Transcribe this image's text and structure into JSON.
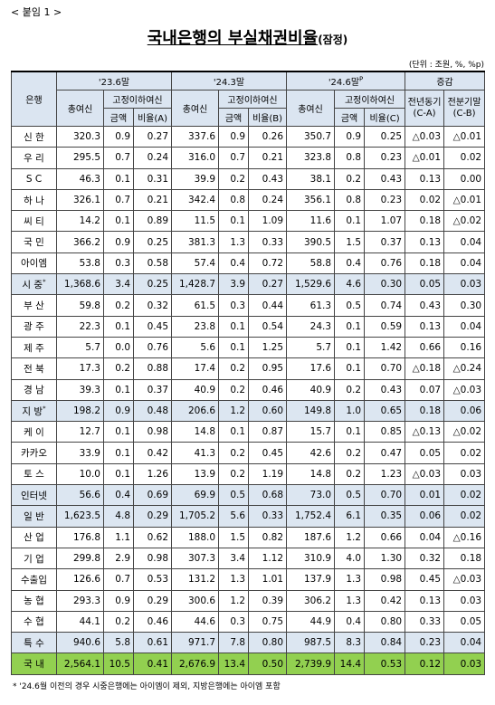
{
  "header": {
    "attachment": "< 붙임 1 >",
    "title": "국내은행의 부실채권비율",
    "title_note": "(잠정)",
    "unit": "(단위 : 조원, %, %p)"
  },
  "table": {
    "head": {
      "bank": "은행",
      "periods": [
        {
          "label": "'23.6말"
        },
        {
          "label": "'24.3말"
        },
        {
          "label": "'24.6말",
          "sup": "P"
        }
      ],
      "total_loans": "총여신",
      "npl": "고정이하여신",
      "amount": "금액",
      "ratios": [
        "비율(A)",
        "비율(B)",
        "비율(C)"
      ],
      "change": "증감",
      "diffs": [
        [
          "전년",
          "동기",
          "(C-A)"
        ],
        [
          "전분기말",
          "(C-B)"
        ]
      ]
    },
    "highlights": {
      "subtotal": "#dce6f1",
      "total": "#92d050"
    },
    "rows": [
      {
        "label": "신 한",
        "cells": [
          "320.3",
          "0.9",
          "0.27",
          "337.6",
          "0.9",
          "0.26",
          "350.7",
          "0.9",
          "0.25",
          "△0.03",
          "△0.01"
        ]
      },
      {
        "label": "우 리",
        "cells": [
          "295.5",
          "0.7",
          "0.24",
          "316.0",
          "0.7",
          "0.21",
          "323.8",
          "0.8",
          "0.23",
          "△0.01",
          "0.02"
        ]
      },
      {
        "label": "S C",
        "cells": [
          "46.3",
          "0.1",
          "0.31",
          "39.9",
          "0.2",
          "0.43",
          "38.1",
          "0.2",
          "0.43",
          "0.13",
          "0.00"
        ]
      },
      {
        "label": "하 나",
        "cells": [
          "326.1",
          "0.7",
          "0.21",
          "342.4",
          "0.8",
          "0.24",
          "356.1",
          "0.8",
          "0.23",
          "0.02",
          "△0.01"
        ]
      },
      {
        "label": "씨 티",
        "cells": [
          "14.2",
          "0.1",
          "0.89",
          "11.5",
          "0.1",
          "1.09",
          "11.6",
          "0.1",
          "1.07",
          "0.18",
          "△0.02"
        ]
      },
      {
        "label": "국 민",
        "cells": [
          "366.2",
          "0.9",
          "0.25",
          "381.3",
          "1.3",
          "0.33",
          "390.5",
          "1.5",
          "0.37",
          "0.13",
          "0.04"
        ]
      },
      {
        "label": "아이엠",
        "cells": [
          "53.8",
          "0.3",
          "0.58",
          "57.4",
          "0.4",
          "0.72",
          "58.8",
          "0.4",
          "0.76",
          "0.18",
          "0.04"
        ]
      },
      {
        "label": "시 중",
        "sup": "*",
        "kind": "subtotal",
        "cells": [
          "1,368.6",
          "3.4",
          "0.25",
          "1,428.7",
          "3.9",
          "0.27",
          "1,529.6",
          "4.6",
          "0.30",
          "0.05",
          "0.03"
        ]
      },
      {
        "label": "부 산",
        "cells": [
          "59.8",
          "0.2",
          "0.32",
          "61.5",
          "0.3",
          "0.44",
          "61.3",
          "0.5",
          "0.74",
          "0.43",
          "0.30"
        ]
      },
      {
        "label": "광 주",
        "cells": [
          "22.3",
          "0.1",
          "0.45",
          "23.8",
          "0.1",
          "0.54",
          "24.3",
          "0.1",
          "0.59",
          "0.13",
          "0.04"
        ]
      },
      {
        "label": "제 주",
        "cells": [
          "5.7",
          "0.0",
          "0.76",
          "5.6",
          "0.1",
          "1.25",
          "5.7",
          "0.1",
          "1.42",
          "0.66",
          "0.16"
        ]
      },
      {
        "label": "전 북",
        "cells": [
          "17.3",
          "0.2",
          "0.88",
          "17.4",
          "0.2",
          "0.95",
          "17.6",
          "0.1",
          "0.70",
          "△0.18",
          "△0.24"
        ]
      },
      {
        "label": "경 남",
        "cells": [
          "39.3",
          "0.1",
          "0.37",
          "40.9",
          "0.2",
          "0.46",
          "40.9",
          "0.2",
          "0.43",
          "0.07",
          "△0.03"
        ]
      },
      {
        "label": "지 방",
        "sup": "*",
        "kind": "subtotal",
        "cells": [
          "198.2",
          "0.9",
          "0.48",
          "206.6",
          "1.2",
          "0.60",
          "149.8",
          "1.0",
          "0.65",
          "0.18",
          "0.06"
        ]
      },
      {
        "label": "케 이",
        "cells": [
          "12.7",
          "0.1",
          "0.98",
          "14.8",
          "0.1",
          "0.87",
          "15.7",
          "0.1",
          "0.85",
          "△0.13",
          "△0.02"
        ]
      },
      {
        "label": "카카오",
        "cells": [
          "33.9",
          "0.1",
          "0.42",
          "41.3",
          "0.2",
          "0.45",
          "42.6",
          "0.2",
          "0.47",
          "0.05",
          "0.02"
        ]
      },
      {
        "label": "토 스",
        "cells": [
          "10.0",
          "0.1",
          "1.26",
          "13.9",
          "0.2",
          "1.19",
          "14.8",
          "0.2",
          "1.23",
          "△0.03",
          "0.03"
        ]
      },
      {
        "label": "인터넷",
        "kind": "subtotal",
        "cells": [
          "56.6",
          "0.4",
          "0.69",
          "69.9",
          "0.5",
          "0.68",
          "73.0",
          "0.5",
          "0.70",
          "0.01",
          "0.02"
        ]
      },
      {
        "label": "일 반",
        "kind": "subtotal",
        "cells": [
          "1,623.5",
          "4.8",
          "0.29",
          "1,705.2",
          "5.6",
          "0.33",
          "1,752.4",
          "6.1",
          "0.35",
          "0.06",
          "0.02"
        ]
      },
      {
        "label": "산 업",
        "cells": [
          "176.8",
          "1.1",
          "0.62",
          "188.0",
          "1.5",
          "0.82",
          "187.6",
          "1.2",
          "0.66",
          "0.04",
          "△0.16"
        ]
      },
      {
        "label": "기 업",
        "cells": [
          "299.8",
          "2.9",
          "0.98",
          "307.3",
          "3.4",
          "1.12",
          "310.9",
          "4.0",
          "1.30",
          "0.32",
          "0.18"
        ]
      },
      {
        "label": "수출입",
        "cells": [
          "126.6",
          "0.7",
          "0.53",
          "131.2",
          "1.3",
          "1.01",
          "137.9",
          "1.3",
          "0.98",
          "0.45",
          "△0.03"
        ]
      },
      {
        "label": "농 협",
        "cells": [
          "293.3",
          "0.9",
          "0.29",
          "300.6",
          "1.2",
          "0.39",
          "306.2",
          "1.3",
          "0.42",
          "0.13",
          "0.03"
        ]
      },
      {
        "label": "수 협",
        "cells": [
          "44.1",
          "0.2",
          "0.46",
          "44.6",
          "0.3",
          "0.75",
          "44.9",
          "0.4",
          "0.80",
          "0.33",
          "0.05"
        ]
      },
      {
        "label": "특 수",
        "kind": "subtotal",
        "cells": [
          "940.6",
          "5.8",
          "0.61",
          "971.7",
          "7.8",
          "0.80",
          "987.5",
          "8.3",
          "0.84",
          "0.23",
          "0.04"
        ]
      },
      {
        "label": "국 내",
        "kind": "total",
        "cells": [
          "2,564.1",
          "10.5",
          "0.41",
          "2,676.9",
          "13.4",
          "0.50",
          "2,739.9",
          "14.4",
          "0.53",
          "0.12",
          "0.03"
        ]
      }
    ]
  },
  "footnote": "* '24.6월 이전의 경우 시중은행에는 아이엠이 제외, 지방은행에는 아이엠 포함"
}
